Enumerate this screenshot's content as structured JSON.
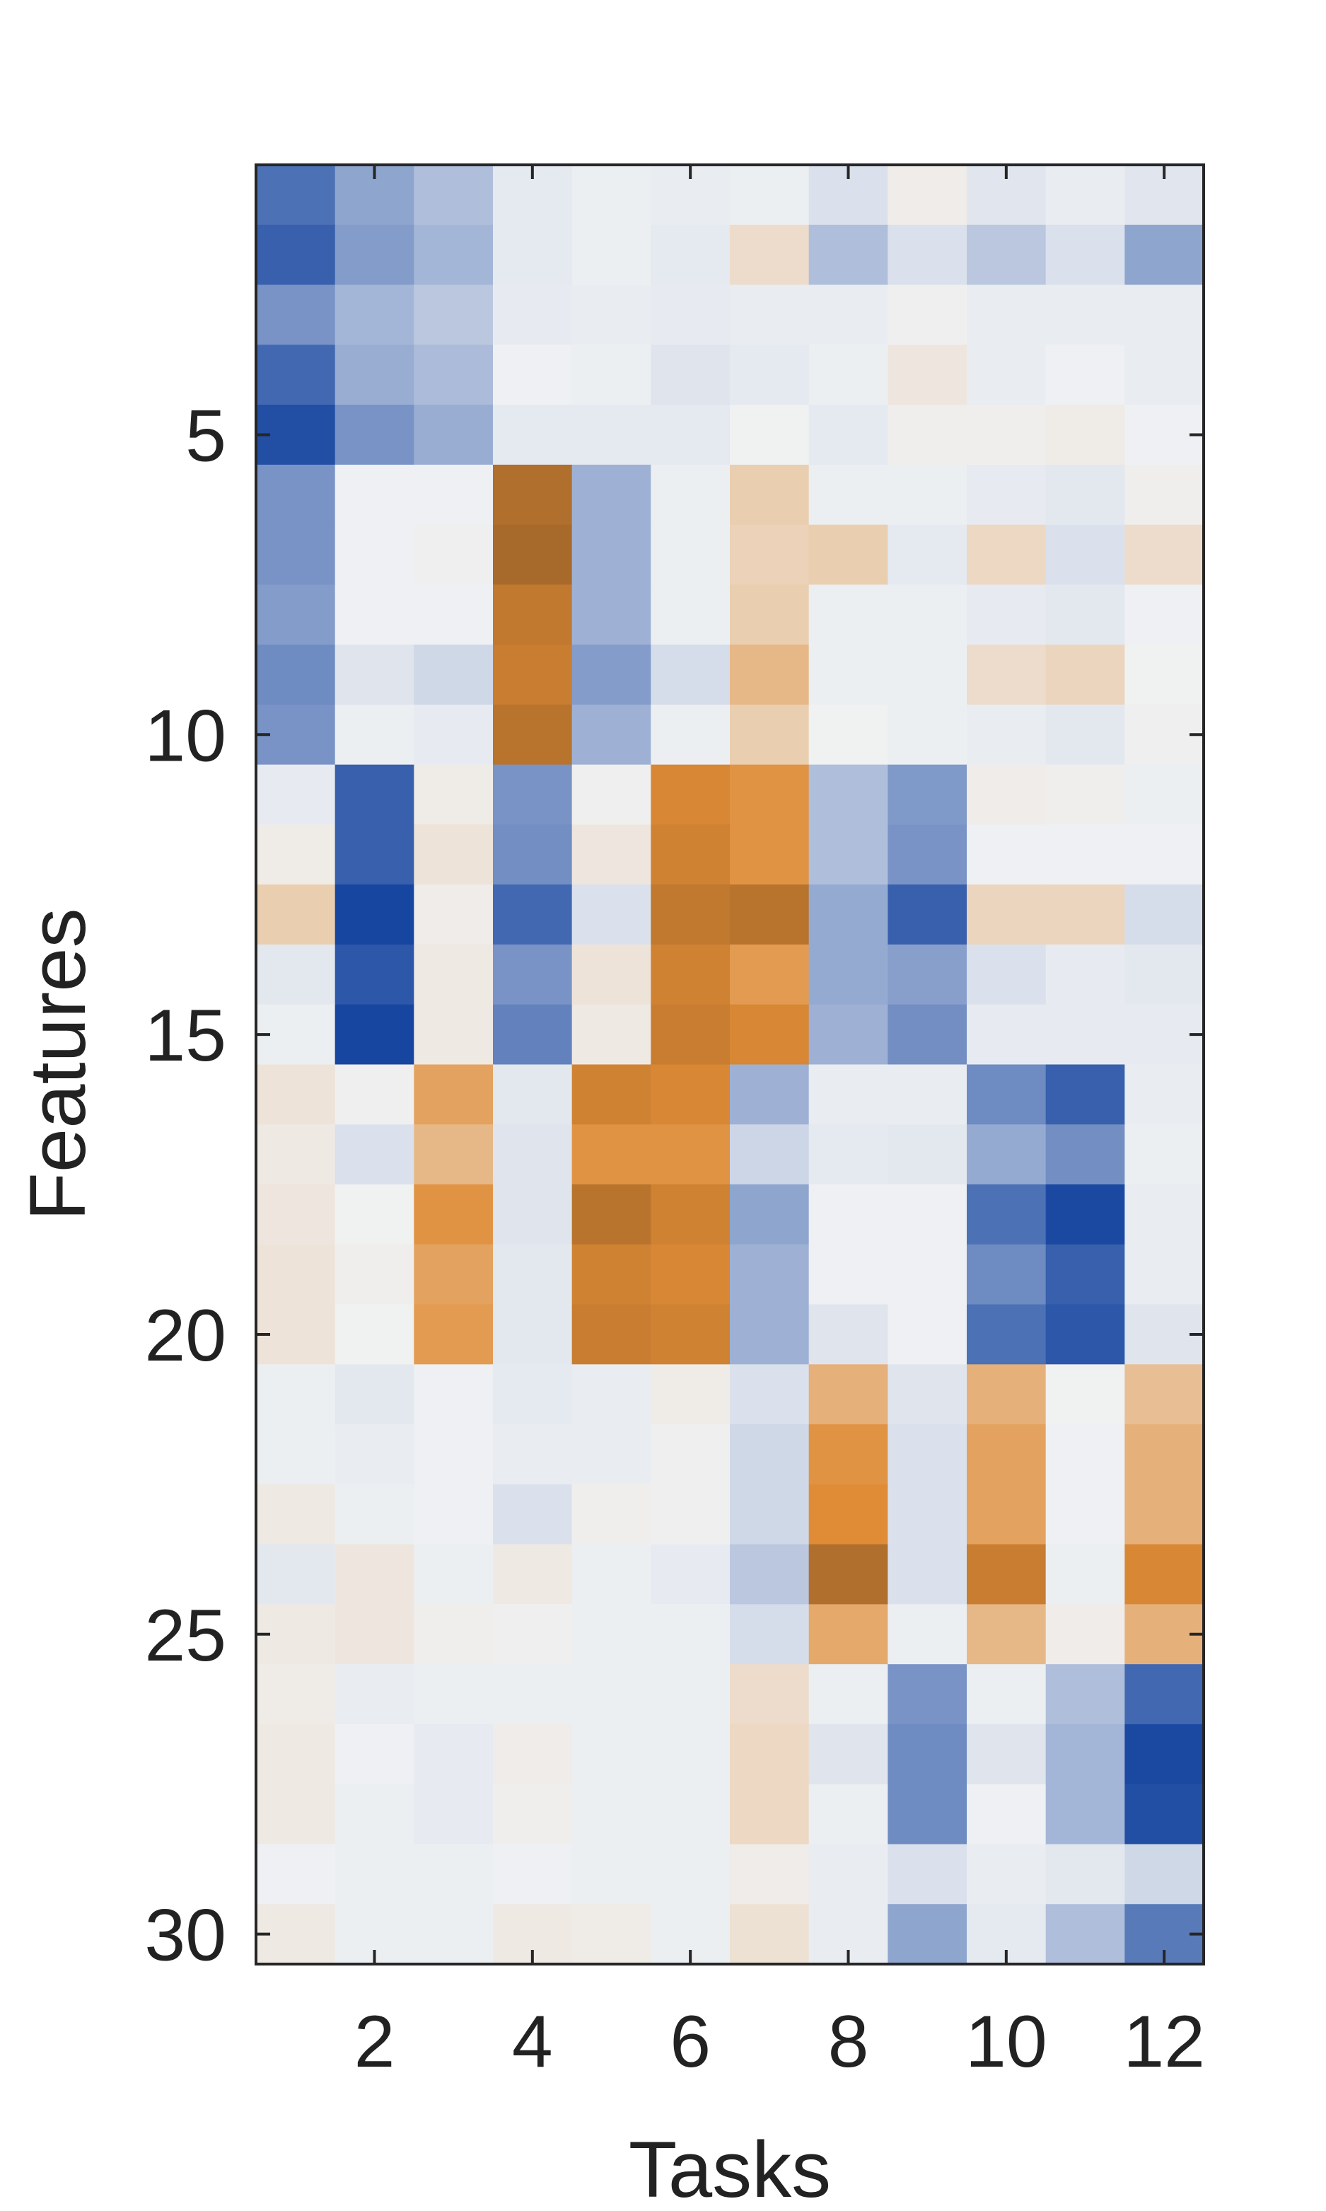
{
  "chart_data": {
    "type": "heatmap",
    "xlabel": "Tasks",
    "ylabel": "Features",
    "x_ticks": [
      2,
      4,
      6,
      8,
      10,
      12
    ],
    "y_ticks": [
      5,
      10,
      15,
      20,
      25,
      30
    ],
    "x_range": [
      1,
      12
    ],
    "y_range": [
      1,
      30
    ],
    "y_direction": "top-to-bottom",
    "grid": false,
    "colormap": {
      "negative_color": "#1746a0",
      "zero_color": "#f0f2f4",
      "positive_color": "#a86a2a",
      "mid_positive_color": "#e08c36"
    },
    "values": [
      [
        -0.75,
        -0.45,
        -0.3,
        -0.05,
        -0.02,
        -0.03,
        -0.02,
        -0.1,
        0.04,
        -0.07,
        -0.03,
        -0.07
      ],
      [
        -0.85,
        -0.5,
        -0.35,
        -0.05,
        -0.02,
        -0.05,
        0.15,
        -0.3,
        -0.1,
        -0.25,
        -0.1,
        -0.45
      ],
      [
        -0.55,
        -0.35,
        -0.25,
        -0.04,
        -0.03,
        -0.04,
        -0.03,
        -0.03,
        0.02,
        -0.03,
        -0.03,
        -0.03
      ],
      [
        -0.8,
        -0.4,
        -0.32,
        -0.01,
        -0.02,
        -0.08,
        -0.05,
        -0.02,
        0.08,
        -0.03,
        -0.01,
        -0.03
      ],
      [
        -0.95,
        -0.55,
        -0.4,
        -0.05,
        -0.05,
        -0.05,
        0.01,
        -0.05,
        0.03,
        0.03,
        0.05,
        -0.01
      ],
      [
        -0.55,
        -0.01,
        -0.01,
        1.0,
        -0.38,
        -0.02,
        0.25,
        -0.02,
        -0.02,
        -0.04,
        -0.06,
        0.03
      ],
      [
        -0.55,
        -0.01,
        0.02,
        1.05,
        -0.38,
        -0.02,
        0.22,
        0.25,
        -0.05,
        0.18,
        -0.1,
        0.15
      ],
      [
        -0.5,
        -0.01,
        -0.01,
        0.9,
        -0.38,
        -0.02,
        0.25,
        -0.02,
        -0.02,
        -0.04,
        -0.06,
        -0.01
      ],
      [
        -0.6,
        -0.08,
        -0.15,
        0.85,
        -0.5,
        -0.12,
        0.4,
        -0.02,
        -0.02,
        0.15,
        0.2,
        0.01
      ],
      [
        -0.55,
        -0.02,
        -0.04,
        0.95,
        -0.38,
        -0.02,
        0.25,
        0.01,
        -0.02,
        -0.03,
        -0.06,
        0.02
      ],
      [
        -0.04,
        -0.85,
        0.05,
        -0.55,
        0.02,
        0.75,
        0.65,
        -0.3,
        -0.52,
        0.04,
        0.03,
        -0.02
      ],
      [
        0.05,
        -0.85,
        0.1,
        -0.58,
        0.08,
        0.8,
        0.65,
        -0.3,
        -0.55,
        -0.01,
        -0.01,
        -0.01
      ],
      [
        0.25,
        -1.0,
        0.04,
        -0.8,
        -0.1,
        0.9,
        0.95,
        -0.42,
        -0.85,
        0.2,
        0.2,
        -0.12
      ],
      [
        -0.06,
        -0.9,
        0.06,
        -0.55,
        0.1,
        0.8,
        0.6,
        -0.42,
        -0.48,
        -0.1,
        -0.04,
        -0.06
      ],
      [
        -0.02,
        -1.0,
        0.06,
        -0.65,
        0.06,
        0.85,
        0.75,
        -0.38,
        -0.58,
        -0.04,
        -0.04,
        -0.04
      ],
      [
        0.1,
        0.02,
        0.55,
        -0.06,
        0.8,
        0.75,
        -0.38,
        -0.03,
        -0.03,
        -0.6,
        -0.85,
        -0.03
      ],
      [
        0.06,
        -0.1,
        0.4,
        -0.08,
        0.65,
        0.65,
        -0.16,
        -0.05,
        -0.06,
        -0.42,
        -0.58,
        -0.02
      ],
      [
        0.08,
        0.01,
        0.65,
        -0.08,
        0.95,
        0.8,
        -0.45,
        -0.01,
        -0.01,
        -0.75,
        -0.98,
        -0.03
      ],
      [
        0.1,
        0.03,
        0.55,
        -0.06,
        0.8,
        0.75,
        -0.38,
        -0.01,
        -0.01,
        -0.6,
        -0.85,
        -0.03
      ],
      [
        0.1,
        0.01,
        0.6,
        -0.06,
        0.85,
        0.8,
        -0.38,
        -0.08,
        -0.01,
        -0.75,
        -0.9,
        -0.08
      ],
      [
        -0.02,
        -0.06,
        -0.01,
        -0.05,
        -0.03,
        0.05,
        -0.1,
        0.45,
        -0.08,
        0.45,
        0.01,
        0.35
      ],
      [
        -0.02,
        -0.03,
        -0.01,
        -0.03,
        -0.03,
        0.02,
        -0.15,
        0.65,
        -0.1,
        0.55,
        -0.01,
        0.45
      ],
      [
        0.06,
        -0.02,
        -0.01,
        -0.1,
        0.03,
        0.02,
        -0.15,
        0.7,
        -0.1,
        0.55,
        -0.01,
        0.45
      ],
      [
        -0.06,
        0.08,
        -0.02,
        0.06,
        -0.02,
        -0.04,
        -0.25,
        1.0,
        -0.1,
        0.85,
        -0.02,
        0.75
      ],
      [
        0.06,
        0.08,
        0.03,
        0.02,
        -0.02,
        -0.02,
        -0.12,
        0.5,
        -0.02,
        0.4,
        0.04,
        0.45
      ],
      [
        0.05,
        -0.03,
        -0.02,
        -0.02,
        -0.02,
        -0.02,
        0.15,
        -0.02,
        -0.55,
        -0.02,
        -0.3,
        -0.8
      ],
      [
        0.06,
        -0.01,
        -0.04,
        0.04,
        -0.02,
        -0.02,
        0.18,
        -0.08,
        -0.6,
        -0.08,
        -0.35,
        -0.98
      ],
      [
        0.06,
        -0.02,
        -0.04,
        0.03,
        -0.02,
        -0.02,
        0.18,
        -0.02,
        -0.6,
        -0.01,
        -0.35,
        -0.95
      ],
      [
        -0.01,
        -0.02,
        -0.02,
        -0.01,
        -0.02,
        -0.02,
        0.04,
        -0.03,
        -0.1,
        -0.03,
        -0.06,
        -0.15
      ],
      [
        0.06,
        -0.02,
        -0.02,
        0.06,
        0.05,
        -0.02,
        0.12,
        -0.03,
        -0.45,
        -0.05,
        -0.3,
        -0.7
      ]
    ]
  }
}
